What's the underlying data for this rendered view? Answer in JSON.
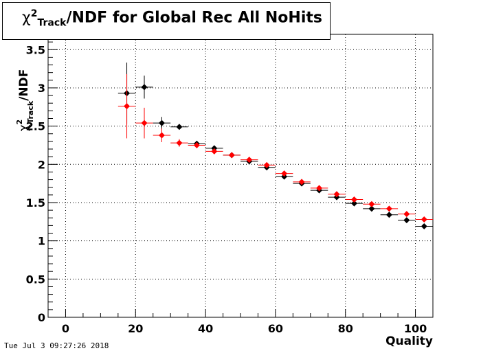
{
  "title": {
    "symbol": "χ",
    "sup": "2",
    "sub": "Track",
    "rest": "/NDF for Global Rec All NoHits"
  },
  "footer": {
    "timestamp": "Tue Jul  3 09:27:26 2018"
  },
  "chart_data": {
    "type": "scatter",
    "title": "χ²_Track/NDF for Global Rec All NoHits",
    "xlabel": "Quality",
    "ylabel": "χ²_Track/NDF",
    "xlim": [
      -5,
      105
    ],
    "ylim": [
      0,
      3.7
    ],
    "grid": true,
    "x_ticks": [
      "0",
      "20",
      "40",
      "60",
      "80",
      "100"
    ],
    "y_ticks": [
      "0",
      "0.5",
      "1",
      "1.5",
      "2",
      "2.5",
      "3",
      "3.5"
    ],
    "series": [
      {
        "color": "#000000",
        "x": [
          17.5,
          22.5,
          27.5,
          32.5,
          37.5,
          42.5,
          47.5,
          52.5,
          57.5,
          62.5,
          67.5,
          72.5,
          77.5,
          82.5,
          87.5,
          92.5,
          97.5,
          102.5
        ],
        "y": [
          2.93,
          3.01,
          2.54,
          2.49,
          2.27,
          2.21,
          2.12,
          2.04,
          1.96,
          1.84,
          1.75,
          1.66,
          1.57,
          1.49,
          1.42,
          1.34,
          1.27,
          1.19
        ],
        "y_err": [
          0.4,
          0.15,
          0.08,
          0.03,
          0.02,
          0.02,
          0.01,
          0.01,
          0.01,
          0.01,
          0.01,
          0.01,
          0.01,
          0.01,
          0.01,
          0.01,
          0.01,
          0.01
        ]
      },
      {
        "color": "#ff0000",
        "x": [
          17.5,
          22.5,
          27.5,
          32.5,
          37.5,
          42.5,
          47.5,
          52.5,
          57.5,
          62.5,
          67.5,
          72.5,
          77.5,
          82.5,
          87.5,
          92.5,
          97.5,
          102.5
        ],
        "y": [
          2.76,
          2.54,
          2.38,
          2.28,
          2.25,
          2.17,
          2.12,
          2.06,
          1.99,
          1.88,
          1.77,
          1.69,
          1.61,
          1.54,
          1.48,
          1.42,
          1.35,
          1.28
        ],
        "y_err": [
          0.42,
          0.2,
          0.09,
          0.05,
          0.03,
          0.02,
          0.02,
          0.01,
          0.01,
          0.01,
          0.01,
          0.01,
          0.01,
          0.01,
          0.01,
          0.01,
          0.01,
          0.01
        ]
      }
    ]
  }
}
